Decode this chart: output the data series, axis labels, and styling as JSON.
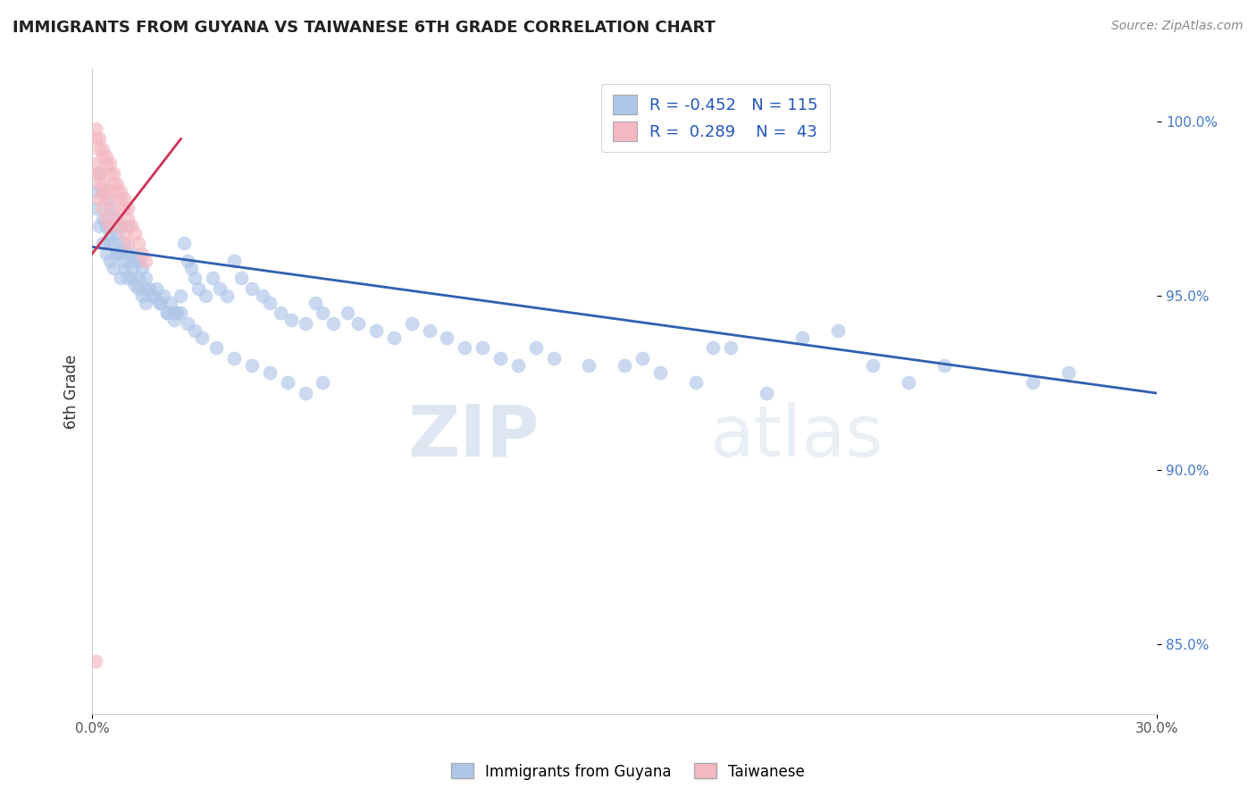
{
  "title": "IMMIGRANTS FROM GUYANA VS TAIWANESE 6TH GRADE CORRELATION CHART",
  "source_text": "Source: ZipAtlas.com",
  "ylabel": "6th Grade",
  "x_min": 0.0,
  "x_max": 0.3,
  "y_min": 83.0,
  "y_max": 101.5,
  "blue_color": "#aec6e8",
  "pink_color": "#f4b8c1",
  "blue_line_color": "#3060b0",
  "pink_line_color": "#cc3355",
  "watermark_zip": "ZIP",
  "watermark_atlas": "atlas",
  "legend_R_blue": "-0.452",
  "legend_N_blue": "115",
  "legend_R_pink": "0.289",
  "legend_N_pink": "43",
  "bottom_legend": [
    "Immigrants from Guyana",
    "Taiwanese"
  ],
  "blue_line_x0": 0.0,
  "blue_line_y0": 96.4,
  "blue_line_x1": 0.3,
  "blue_line_y1": 92.2,
  "pink_line_x0": 0.0,
  "pink_line_y0": 96.2,
  "pink_line_x1": 0.025,
  "pink_line_y1": 99.5,
  "blue_scatter_x": [
    0.001,
    0.001,
    0.002,
    0.002,
    0.003,
    0.003,
    0.003,
    0.004,
    0.004,
    0.004,
    0.005,
    0.005,
    0.005,
    0.006,
    0.006,
    0.006,
    0.007,
    0.007,
    0.008,
    0.008,
    0.008,
    0.009,
    0.009,
    0.01,
    0.01,
    0.01,
    0.011,
    0.011,
    0.012,
    0.012,
    0.013,
    0.013,
    0.014,
    0.014,
    0.015,
    0.015,
    0.016,
    0.017,
    0.018,
    0.019,
    0.02,
    0.021,
    0.022,
    0.023,
    0.024,
    0.025,
    0.026,
    0.027,
    0.028,
    0.029,
    0.03,
    0.032,
    0.034,
    0.036,
    0.038,
    0.04,
    0.042,
    0.045,
    0.048,
    0.05,
    0.053,
    0.056,
    0.06,
    0.063,
    0.065,
    0.068,
    0.072,
    0.075,
    0.08,
    0.085,
    0.09,
    0.095,
    0.1,
    0.105,
    0.11,
    0.115,
    0.12,
    0.125,
    0.13,
    0.14,
    0.15,
    0.16,
    0.17,
    0.18,
    0.19,
    0.2,
    0.21,
    0.22,
    0.23,
    0.24,
    0.005,
    0.007,
    0.009,
    0.011,
    0.013,
    0.015,
    0.017,
    0.019,
    0.021,
    0.023,
    0.025,
    0.027,
    0.029,
    0.031,
    0.035,
    0.04,
    0.045,
    0.05,
    0.055,
    0.06,
    0.065,
    0.155,
    0.175,
    0.265,
    0.275
  ],
  "blue_scatter_y": [
    98.0,
    97.5,
    98.5,
    97.0,
    98.0,
    97.2,
    96.5,
    97.8,
    97.0,
    96.2,
    97.5,
    96.8,
    96.0,
    97.2,
    96.5,
    95.8,
    96.8,
    96.2,
    97.0,
    96.3,
    95.5,
    96.5,
    95.8,
    97.0,
    96.2,
    95.5,
    96.2,
    95.5,
    96.0,
    95.3,
    96.0,
    95.2,
    95.8,
    95.0,
    95.5,
    94.8,
    95.2,
    95.0,
    95.2,
    94.8,
    95.0,
    94.5,
    94.8,
    94.5,
    94.5,
    95.0,
    96.5,
    96.0,
    95.8,
    95.5,
    95.2,
    95.0,
    95.5,
    95.2,
    95.0,
    96.0,
    95.5,
    95.2,
    95.0,
    94.8,
    94.5,
    94.3,
    94.2,
    94.8,
    94.5,
    94.2,
    94.5,
    94.2,
    94.0,
    93.8,
    94.2,
    94.0,
    93.8,
    93.5,
    93.5,
    93.2,
    93.0,
    93.5,
    93.2,
    93.0,
    93.0,
    92.8,
    92.5,
    93.5,
    92.2,
    93.8,
    94.0,
    93.0,
    92.5,
    93.0,
    96.5,
    96.2,
    96.0,
    95.8,
    95.5,
    95.2,
    95.0,
    94.8,
    94.5,
    94.3,
    94.5,
    94.2,
    94.0,
    93.8,
    93.5,
    93.2,
    93.0,
    92.8,
    92.5,
    92.2,
    92.5,
    93.2,
    93.5,
    92.5,
    92.8
  ],
  "pink_scatter_x": [
    0.001,
    0.001,
    0.002,
    0.002,
    0.002,
    0.003,
    0.003,
    0.003,
    0.004,
    0.004,
    0.004,
    0.005,
    0.005,
    0.005,
    0.006,
    0.006,
    0.007,
    0.007,
    0.008,
    0.008,
    0.009,
    0.009,
    0.01,
    0.01,
    0.011,
    0.012,
    0.013,
    0.014,
    0.015,
    0.001,
    0.002,
    0.003,
    0.004,
    0.005,
    0.006,
    0.007,
    0.008,
    0.009,
    0.01,
    0.001,
    0.002,
    0.003,
    0.001
  ],
  "pink_scatter_y": [
    99.5,
    98.8,
    99.2,
    98.5,
    97.8,
    99.0,
    98.2,
    97.5,
    98.8,
    98.0,
    97.2,
    98.5,
    97.8,
    97.0,
    98.2,
    97.5,
    98.0,
    97.2,
    97.8,
    97.0,
    97.5,
    96.8,
    97.2,
    96.5,
    97.0,
    96.8,
    96.5,
    96.2,
    96.0,
    99.8,
    99.5,
    99.2,
    99.0,
    98.8,
    98.5,
    98.2,
    98.0,
    97.8,
    97.5,
    98.5,
    98.2,
    97.9,
    84.5
  ]
}
